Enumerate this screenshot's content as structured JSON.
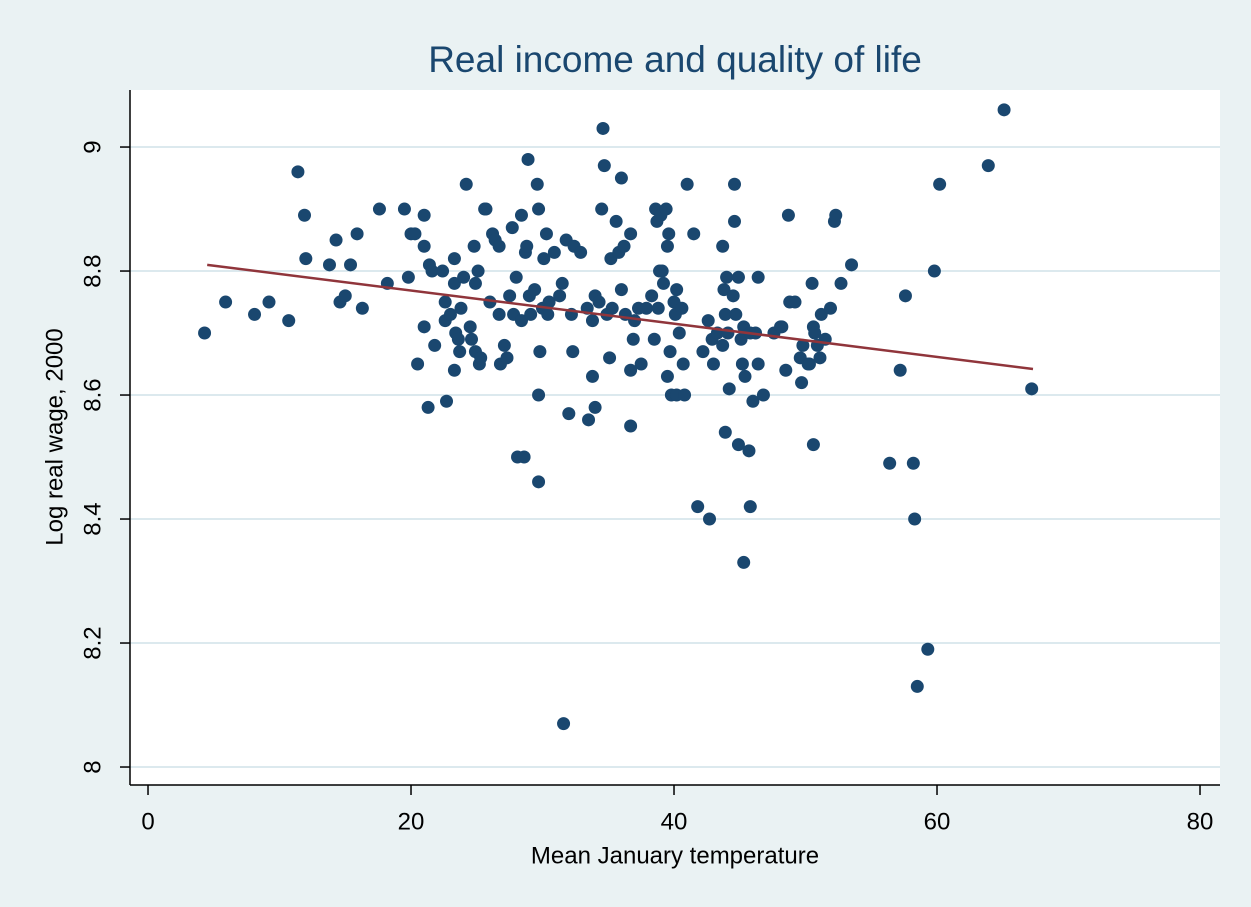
{
  "chart_data": {
    "type": "scatter",
    "title": "Real income and quality of life",
    "x_label": "Mean January temperature",
    "y_label": "Log real wage, 2000",
    "color": "#1a476f",
    "xlim": [
      -1.37,
      81.52
    ],
    "ylim": [
      7.971,
      9.092
    ],
    "xticks": [
      0,
      20,
      40,
      60,
      80
    ],
    "yticks": [
      8,
      8.2,
      8.4,
      8.6,
      8.8,
      9
    ],
    "grid": true,
    "x": [
      4.3,
      5.9,
      8.1,
      9.2,
      10.7,
      11.4,
      11.9,
      12.0,
      13.8,
      14.3,
      14.6,
      15.0,
      15.4,
      15.9,
      16.3,
      17.6,
      18.2,
      19.5,
      19.8,
      20.0,
      20.3,
      20.5,
      21.0,
      21.0,
      21.0,
      21.3,
      21.4,
      21.6,
      21.8,
      22.4,
      22.6,
      22.6,
      22.7,
      23.0,
      23.3,
      23.3,
      23.3,
      23.4,
      23.6,
      23.7,
      23.8,
      24.0,
      24.2,
      24.5,
      24.6,
      24.8,
      24.9,
      24.9,
      25.1,
      25.2,
      25.3,
      25.6,
      25.7,
      26.0,
      26.2,
      26.4,
      26.7,
      26.7,
      26.8,
      27.1,
      27.3,
      27.5,
      27.7,
      27.8,
      28.0,
      28.1,
      28.4,
      28.4,
      28.6,
      28.7,
      28.8,
      28.9,
      29.0,
      29.1,
      29.4,
      29.6,
      29.7,
      29.7,
      29.7,
      29.8,
      30.0,
      30.1,
      30.3,
      30.4,
      30.5,
      30.9,
      31.3,
      31.5,
      31.6,
      31.8,
      32.0,
      32.2,
      32.3,
      32.4,
      32.9,
      33.4,
      33.5,
      33.8,
      33.8,
      34.0,
      34.0,
      34.3,
      34.5,
      34.6,
      34.7,
      34.9,
      35.1,
      35.2,
      35.3,
      35.6,
      35.8,
      36.0,
      36.0,
      36.2,
      36.3,
      36.7,
      36.7,
      36.7,
      36.9,
      37.0,
      37.3,
      37.5,
      37.9,
      38.3,
      38.5,
      38.6,
      38.7,
      38.8,
      38.9,
      39.0,
      39.1,
      39.2,
      39.4,
      39.5,
      39.5,
      39.6,
      39.7,
      39.8,
      40.0,
      40.1,
      40.2,
      40.2,
      40.4,
      40.6,
      40.7,
      40.8,
      41.0,
      41.5,
      41.8,
      42.2,
      42.6,
      42.7,
      42.9,
      43.0,
      43.3,
      43.7,
      43.7,
      43.8,
      43.9,
      43.9,
      44.0,
      44.1,
      44.2,
      44.5,
      44.6,
      44.6,
      44.7,
      44.9,
      44.9,
      45.1,
      45.2,
      45.3,
      45.3,
      45.4,
      45.7,
      45.8,
      45.8,
      46.0,
      46.2,
      46.4,
      46.4,
      46.8,
      47.6,
      48.1,
      48.2,
      48.5,
      48.7,
      48.8,
      49.2,
      49.6,
      49.7,
      49.8,
      50.2,
      50.3,
      50.5,
      50.6,
      50.6,
      50.7,
      50.9,
      51.1,
      51.2,
      51.5,
      51.9,
      52.2,
      52.3,
      52.7,
      53.5,
      56.4,
      57.2,
      57.6,
      58.2,
      58.3,
      58.5,
      59.3,
      59.8,
      60.2,
      63.9,
      65.1,
      67.2
    ],
    "y": [
      8.7,
      8.75,
      8.73,
      8.75,
      8.72,
      8.96,
      8.89,
      8.82,
      8.81,
      8.85,
      8.75,
      8.76,
      8.81,
      8.86,
      8.74,
      8.9,
      8.78,
      8.9,
      8.79,
      8.86,
      8.86,
      8.65,
      8.84,
      8.89,
      8.71,
      8.58,
      8.81,
      8.8,
      8.68,
      8.8,
      8.75,
      8.72,
      8.59,
      8.73,
      8.78,
      8.82,
      8.64,
      8.7,
      8.69,
      8.67,
      8.74,
      8.79,
      8.94,
      8.71,
      8.69,
      8.84,
      8.78,
      8.67,
      8.8,
      8.65,
      8.66,
      8.9,
      8.9,
      8.75,
      8.86,
      8.85,
      8.84,
      8.73,
      8.65,
      8.68,
      8.66,
      8.76,
      8.87,
      8.73,
      8.79,
      8.5,
      8.89,
      8.72,
      8.5,
      8.83,
      8.84,
      8.98,
      8.76,
      8.73,
      8.77,
      8.94,
      8.46,
      8.6,
      8.9,
      8.67,
      8.74,
      8.82,
      8.86,
      8.73,
      8.75,
      8.83,
      8.76,
      8.78,
      8.07,
      8.85,
      8.57,
      8.73,
      8.67,
      8.84,
      8.83,
      8.74,
      8.56,
      8.63,
      8.72,
      8.76,
      8.58,
      8.75,
      8.9,
      9.03,
      8.97,
      8.73,
      8.66,
      8.82,
      8.74,
      8.88,
      8.83,
      8.77,
      8.95,
      8.84,
      8.73,
      8.86,
      8.64,
      8.55,
      8.69,
      8.72,
      8.74,
      8.65,
      8.74,
      8.76,
      8.69,
      8.9,
      8.88,
      8.74,
      8.8,
      8.89,
      8.8,
      8.78,
      8.9,
      8.63,
      8.84,
      8.86,
      8.67,
      8.6,
      8.75,
      8.73,
      8.77,
      8.6,
      8.7,
      8.74,
      8.65,
      8.6,
      8.94,
      8.86,
      8.42,
      8.67,
      8.72,
      8.4,
      8.69,
      8.65,
      8.7,
      8.68,
      8.84,
      8.77,
      8.73,
      8.54,
      8.79,
      8.7,
      8.61,
      8.76,
      8.94,
      8.88,
      8.73,
      8.79,
      8.52,
      8.69,
      8.65,
      8.71,
      8.33,
      8.63,
      8.51,
      8.7,
      8.42,
      8.59,
      8.7,
      8.79,
      8.65,
      8.6,
      8.7,
      8.71,
      8.71,
      8.64,
      8.89,
      8.75,
      8.75,
      8.66,
      8.62,
      8.68,
      8.65,
      8.65,
      8.78,
      8.71,
      8.52,
      8.7,
      8.68,
      8.66,
      8.73,
      8.69,
      8.74,
      8.88,
      8.89,
      8.78,
      8.81,
      8.49,
      8.64,
      8.76,
      8.49,
      8.4,
      8.13,
      8.19,
      8.8,
      8.94,
      8.97,
      9.06,
      8.61
    ],
    "fit": {
      "color": "#90353b",
      "x": [
        4.5,
        67.3
      ],
      "y": [
        8.81,
        8.642
      ]
    }
  }
}
